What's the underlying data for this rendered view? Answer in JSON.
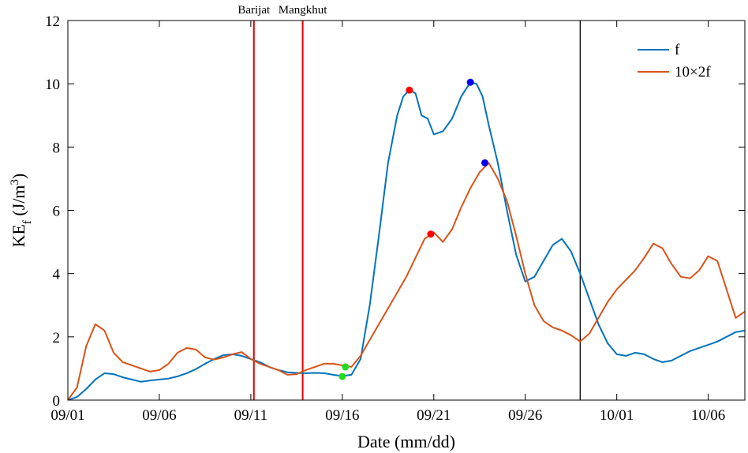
{
  "chart_data": {
    "type": "line",
    "xlabel": "Date (mm/dd)",
    "ylabel": {
      "base": "KE",
      "sub": "f",
      "unit_prefix": " (J/m",
      "sup": "3",
      "unit_suffix": ")"
    },
    "x_start": "09/01",
    "x_end": "10/08",
    "x_ticks": [
      "09/01",
      "09/06",
      "09/11",
      "09/16",
      "09/21",
      "09/26",
      "10/01",
      "10/06"
    ],
    "ylim": [
      0,
      12
    ],
    "y_ticks": [
      "0",
      "2",
      "4",
      "6",
      "8",
      "10",
      "12"
    ],
    "grid": false,
    "legend_position": "top-right",
    "series": [
      {
        "name": "f",
        "color": "#0072BD",
        "points": [
          [
            "09/01 00:00",
            0.0
          ],
          [
            "09/01 12:00",
            0.1
          ],
          [
            "09/02 00:00",
            0.35
          ],
          [
            "09/02 12:00",
            0.65
          ],
          [
            "09/03 00:00",
            0.85
          ],
          [
            "09/03 12:00",
            0.82
          ],
          [
            "09/04 00:00",
            0.72
          ],
          [
            "09/04 12:00",
            0.65
          ],
          [
            "09/05 00:00",
            0.58
          ],
          [
            "09/05 12:00",
            0.62
          ],
          [
            "09/06 00:00",
            0.65
          ],
          [
            "09/06 12:00",
            0.68
          ],
          [
            "09/07 00:00",
            0.75
          ],
          [
            "09/07 12:00",
            0.85
          ],
          [
            "09/08 00:00",
            0.98
          ],
          [
            "09/08 12:00",
            1.15
          ],
          [
            "09/09 00:00",
            1.3
          ],
          [
            "09/09 12:00",
            1.42
          ],
          [
            "09/10 00:00",
            1.45
          ],
          [
            "09/10 12:00",
            1.4
          ],
          [
            "09/11 00:00",
            1.3
          ],
          [
            "09/11 12:00",
            1.2
          ],
          [
            "09/12 00:00",
            1.05
          ],
          [
            "09/12 12:00",
            0.95
          ],
          [
            "09/13 00:00",
            0.88
          ],
          [
            "09/13 12:00",
            0.86
          ],
          [
            "09/14 00:00",
            0.85
          ],
          [
            "09/14 12:00",
            0.86
          ],
          [
            "09/15 00:00",
            0.85
          ],
          [
            "09/15 12:00",
            0.8
          ],
          [
            "09/16 00:00",
            0.76
          ],
          [
            "09/16 12:00",
            0.8
          ],
          [
            "09/17 00:00",
            1.3
          ],
          [
            "09/17 12:00",
            3.0
          ],
          [
            "09/18 00:00",
            5.2
          ],
          [
            "09/18 12:00",
            7.5
          ],
          [
            "09/19 00:00",
            9.0
          ],
          [
            "09/19 08:00",
            9.6
          ],
          [
            "09/19 16:00",
            9.8
          ],
          [
            "09/20 00:00",
            9.7
          ],
          [
            "09/20 08:00",
            9.0
          ],
          [
            "09/20 16:00",
            8.9
          ],
          [
            "09/21 00:00",
            8.4
          ],
          [
            "09/21 12:00",
            8.5
          ],
          [
            "09/22 00:00",
            8.9
          ],
          [
            "09/22 12:00",
            9.6
          ],
          [
            "09/23 00:00",
            10.05
          ],
          [
            "09/23 08:00",
            10.0
          ],
          [
            "09/23 16:00",
            9.6
          ],
          [
            "09/24 00:00",
            8.7
          ],
          [
            "09/24 12:00",
            7.5
          ],
          [
            "09/25 00:00",
            6.0
          ],
          [
            "09/25 12:00",
            4.6
          ],
          [
            "09/26 00:00",
            3.75
          ],
          [
            "09/26 12:00",
            3.9
          ],
          [
            "09/27 00:00",
            4.4
          ],
          [
            "09/27 12:00",
            4.9
          ],
          [
            "09/28 00:00",
            5.1
          ],
          [
            "09/28 12:00",
            4.7
          ],
          [
            "09/29 00:00",
            4.0
          ],
          [
            "09/29 12:00",
            3.2
          ],
          [
            "09/30 00:00",
            2.4
          ],
          [
            "09/30 12:00",
            1.8
          ],
          [
            "10/01 00:00",
            1.45
          ],
          [
            "10/01 12:00",
            1.4
          ],
          [
            "10/02 00:00",
            1.5
          ],
          [
            "10/02 12:00",
            1.45
          ],
          [
            "10/03 00:00",
            1.3
          ],
          [
            "10/03 12:00",
            1.2
          ],
          [
            "10/04 00:00",
            1.25
          ],
          [
            "10/04 12:00",
            1.4
          ],
          [
            "10/05 00:00",
            1.55
          ],
          [
            "10/05 12:00",
            1.65
          ],
          [
            "10/06 00:00",
            1.75
          ],
          [
            "10/06 12:00",
            1.85
          ],
          [
            "10/07 00:00",
            2.0
          ],
          [
            "10/07 12:00",
            2.15
          ],
          [
            "10/08 00:00",
            2.2
          ]
        ]
      },
      {
        "name": "10×2f",
        "color": "#D95319",
        "points": [
          [
            "09/01 00:00",
            0.0
          ],
          [
            "09/01 12:00",
            0.4
          ],
          [
            "09/02 00:00",
            1.7
          ],
          [
            "09/02 12:00",
            2.4
          ],
          [
            "09/03 00:00",
            2.2
          ],
          [
            "09/03 12:00",
            1.5
          ],
          [
            "09/04 00:00",
            1.2
          ],
          [
            "09/04 12:00",
            1.1
          ],
          [
            "09/05 00:00",
            1.0
          ],
          [
            "09/05 12:00",
            0.9
          ],
          [
            "09/06 00:00",
            0.95
          ],
          [
            "09/06 12:00",
            1.15
          ],
          [
            "09/07 00:00",
            1.5
          ],
          [
            "09/07 12:00",
            1.65
          ],
          [
            "09/08 00:00",
            1.6
          ],
          [
            "09/08 12:00",
            1.35
          ],
          [
            "09/09 00:00",
            1.28
          ],
          [
            "09/09 12:00",
            1.35
          ],
          [
            "09/10 00:00",
            1.45
          ],
          [
            "09/10 12:00",
            1.52
          ],
          [
            "09/11 00:00",
            1.3
          ],
          [
            "09/11 12:00",
            1.15
          ],
          [
            "09/12 00:00",
            1.05
          ],
          [
            "09/12 12:00",
            0.95
          ],
          [
            "09/13 00:00",
            0.8
          ],
          [
            "09/13 12:00",
            0.82
          ],
          [
            "09/14 00:00",
            0.95
          ],
          [
            "09/14 12:00",
            1.05
          ],
          [
            "09/15 00:00",
            1.15
          ],
          [
            "09/15 12:00",
            1.15
          ],
          [
            "09/16 00:00",
            1.1
          ],
          [
            "09/16 12:00",
            1.05
          ],
          [
            "09/17 00:00",
            1.4
          ],
          [
            "09/17 12:00",
            1.9
          ],
          [
            "09/18 00:00",
            2.4
          ],
          [
            "09/18 12:00",
            2.9
          ],
          [
            "09/19 00:00",
            3.4
          ],
          [
            "09/19 12:00",
            3.9
          ],
          [
            "09/20 00:00",
            4.5
          ],
          [
            "09/20 12:00",
            5.1
          ],
          [
            "09/21 00:00",
            5.3
          ],
          [
            "09/21 12:00",
            5.0
          ],
          [
            "09/22 00:00",
            5.4
          ],
          [
            "09/22 12:00",
            6.1
          ],
          [
            "09/23 00:00",
            6.7
          ],
          [
            "09/23 12:00",
            7.2
          ],
          [
            "09/24 00:00",
            7.5
          ],
          [
            "09/24 12:00",
            7.0
          ],
          [
            "09/25 00:00",
            6.3
          ],
          [
            "09/25 12:00",
            5.2
          ],
          [
            "09/26 00:00",
            4.0
          ],
          [
            "09/26 12:00",
            3.0
          ],
          [
            "09/27 00:00",
            2.5
          ],
          [
            "09/27 12:00",
            2.3
          ],
          [
            "09/28 00:00",
            2.2
          ],
          [
            "09/28 12:00",
            2.05
          ],
          [
            "09/29 00:00",
            1.85
          ],
          [
            "09/29 12:00",
            2.1
          ],
          [
            "09/30 00:00",
            2.6
          ],
          [
            "09/30 12:00",
            3.1
          ],
          [
            "10/01 00:00",
            3.5
          ],
          [
            "10/01 12:00",
            3.8
          ],
          [
            "10/02 00:00",
            4.1
          ],
          [
            "10/02 12:00",
            4.5
          ],
          [
            "10/03 00:00",
            4.95
          ],
          [
            "10/03 12:00",
            4.8
          ],
          [
            "10/04 00:00",
            4.3
          ],
          [
            "10/04 12:00",
            3.9
          ],
          [
            "10/05 00:00",
            3.85
          ],
          [
            "10/05 12:00",
            4.1
          ],
          [
            "10/06 00:00",
            4.55
          ],
          [
            "10/06 12:00",
            4.4
          ],
          [
            "10/07 00:00",
            3.5
          ],
          [
            "10/07 12:00",
            2.6
          ],
          [
            "10/08 00:00",
            2.8
          ]
        ]
      }
    ],
    "markers": [
      {
        "series": "f",
        "x": "09/16 00:00",
        "y": 0.75,
        "color": "#22DD22"
      },
      {
        "series": "10×2f",
        "x": "09/16 04:00",
        "y": 1.05,
        "color": "#22DD22"
      },
      {
        "series": "f",
        "x": "09/19 16:00",
        "y": 9.8,
        "color": "#FF0000"
      },
      {
        "series": "10×2f",
        "x": "09/20 20:00",
        "y": 5.25,
        "color": "#FF0000"
      },
      {
        "series": "f",
        "x": "09/23 00:00",
        "y": 10.05,
        "color": "#0000EE"
      },
      {
        "series": "10×2f",
        "x": "09/23 19:00",
        "y": 7.5,
        "color": "#0000EE"
      }
    ],
    "vertical_lines": [
      {
        "x": "09/11 04:00",
        "color": "#E00000",
        "label": "Barijat"
      },
      {
        "x": "09/13 20:00",
        "color": "#E00000",
        "label": "Mangkhut"
      },
      {
        "x": "09/29 00:00",
        "color": "#000000",
        "label": ""
      }
    ]
  }
}
